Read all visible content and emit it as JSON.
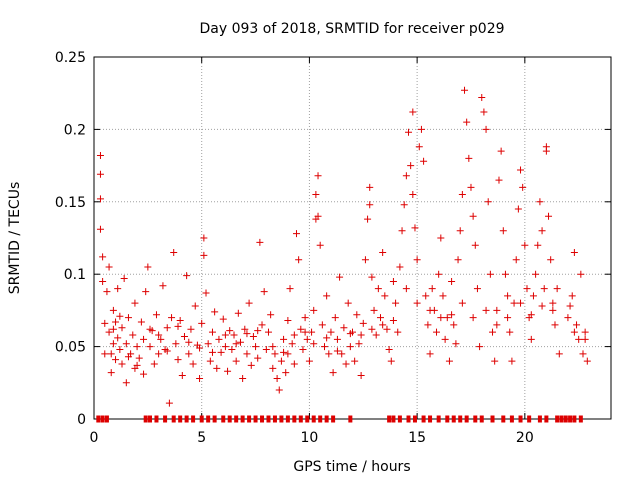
{
  "chart_data": {
    "type": "scatter",
    "title": "Day 093 of 2018, SRMTID for receiver p029",
    "xlabel": "GPS time / hours",
    "ylabel": "SRMTID / TECUs",
    "xlim": [
      0,
      24
    ],
    "ylim": [
      0,
      0.25
    ],
    "xticks": [
      0,
      5,
      10,
      15,
      20
    ],
    "yticks": [
      0,
      0.05,
      0.1,
      0.15,
      0.2,
      0.25
    ],
    "ytick_labels": [
      "0",
      "0.05",
      "0.1",
      "0.15",
      "0.2",
      "0.25"
    ],
    "grid": true,
    "marker": "+",
    "color": "#dd0000",
    "points": [
      [
        0.3,
        0.182
      ],
      [
        0.3,
        0.169
      ],
      [
        0.3,
        0.152
      ],
      [
        0.3,
        0.131
      ],
      [
        0.4,
        0.112
      ],
      [
        0.4,
        0.095
      ],
      [
        0.5,
        0.066
      ],
      [
        0.6,
        0.088
      ],
      [
        0.7,
        0.105
      ],
      [
        0.7,
        0.06
      ],
      [
        0.8,
        0.045
      ],
      [
        0.8,
        0.032
      ],
      [
        0.9,
        0.075
      ],
      [
        0.9,
        0.052
      ],
      [
        1.0,
        0.067
      ],
      [
        1.0,
        0.041
      ],
      [
        1.1,
        0.09
      ],
      [
        1.1,
        0.056
      ],
      [
        1.2,
        0.048
      ],
      [
        1.3,
        0.063
      ],
      [
        1.3,
        0.038
      ],
      [
        1.4,
        0.097
      ],
      [
        1.5,
        0.052
      ],
      [
        1.5,
        0.025
      ],
      [
        1.6,
        0.07
      ],
      [
        1.7,
        0.045
      ],
      [
        1.8,
        0.058
      ],
      [
        1.9,
        0.035
      ],
      [
        1.9,
        0.08
      ],
      [
        2.0,
        0.05
      ],
      [
        2.1,
        0.042
      ],
      [
        2.2,
        0.067
      ],
      [
        2.3,
        0.031
      ],
      [
        2.3,
        0.055
      ],
      [
        2.4,
        0.088
      ],
      [
        2.5,
        0.105
      ],
      [
        2.6,
        0.05
      ],
      [
        2.7,
        0.061
      ],
      [
        2.8,
        0.038
      ],
      [
        2.9,
        0.072
      ],
      [
        3.0,
        0.045
      ],
      [
        3.1,
        0.055
      ],
      [
        3.2,
        0.092
      ],
      [
        3.3,
        0.048
      ],
      [
        3.4,
        0.063
      ],
      [
        3.5,
        0.011
      ],
      [
        3.6,
        0.07
      ],
      [
        3.7,
        0.115
      ],
      [
        3.8,
        0.052
      ],
      [
        3.9,
        0.041
      ],
      [
        4.0,
        0.068
      ],
      [
        4.1,
        0.03
      ],
      [
        4.2,
        0.057
      ],
      [
        4.3,
        0.099
      ],
      [
        4.4,
        0.045
      ],
      [
        4.5,
        0.062
      ],
      [
        4.6,
        0.038
      ],
      [
        4.7,
        0.078
      ],
      [
        4.8,
        0.051
      ],
      [
        4.9,
        0.028
      ],
      [
        5.0,
        0.066
      ],
      [
        5.1,
        0.125
      ],
      [
        5.1,
        0.113
      ],
      [
        5.2,
        0.087
      ],
      [
        5.3,
        0.052
      ],
      [
        5.4,
        0.04
      ],
      [
        5.5,
        0.06
      ],
      [
        5.6,
        0.074
      ],
      [
        5.7,
        0.035
      ],
      [
        5.8,
        0.055
      ],
      [
        5.9,
        0.046
      ],
      [
        6.0,
        0.069
      ],
      [
        6.1,
        0.05
      ],
      [
        6.2,
        0.033
      ],
      [
        6.3,
        0.061
      ],
      [
        6.4,
        0.048
      ],
      [
        6.5,
        0.058
      ],
      [
        6.6,
        0.04
      ],
      [
        6.7,
        0.073
      ],
      [
        6.8,
        0.053
      ],
      [
        6.9,
        0.028
      ],
      [
        7.0,
        0.062
      ],
      [
        7.1,
        0.045
      ],
      [
        7.2,
        0.08
      ],
      [
        7.3,
        0.037
      ],
      [
        7.4,
        0.057
      ],
      [
        7.5,
        0.05
      ],
      [
        7.6,
        0.042
      ],
      [
        7.7,
        0.122
      ],
      [
        7.8,
        0.065
      ],
      [
        7.9,
        0.088
      ],
      [
        8.0,
        0.048
      ],
      [
        8.1,
        0.06
      ],
      [
        8.2,
        0.072
      ],
      [
        8.3,
        0.035
      ],
      [
        8.4,
        0.045
      ],
      [
        8.5,
        0.028
      ],
      [
        8.6,
        0.02
      ],
      [
        8.7,
        0.04
      ],
      [
        8.8,
        0.055
      ],
      [
        8.9,
        0.032
      ],
      [
        9.0,
        0.068
      ],
      [
        9.0,
        0.045
      ],
      [
        9.1,
        0.09
      ],
      [
        9.2,
        0.052
      ],
      [
        9.3,
        0.038
      ],
      [
        9.4,
        0.128
      ],
      [
        9.5,
        0.11
      ],
      [
        9.6,
        0.062
      ],
      [
        9.7,
        0.048
      ],
      [
        9.8,
        0.07
      ],
      [
        9.9,
        0.055
      ],
      [
        10.0,
        0.04
      ],
      [
        10.1,
        0.06
      ],
      [
        10.2,
        0.075
      ],
      [
        10.3,
        0.155
      ],
      [
        10.3,
        0.138
      ],
      [
        10.4,
        0.14
      ],
      [
        10.4,
        0.168
      ],
      [
        10.5,
        0.12
      ],
      [
        10.6,
        0.065
      ],
      [
        10.7,
        0.05
      ],
      [
        10.8,
        0.085
      ],
      [
        10.9,
        0.045
      ],
      [
        11.0,
        0.06
      ],
      [
        11.1,
        0.032
      ],
      [
        11.2,
        0.07
      ],
      [
        11.3,
        0.055
      ],
      [
        11.4,
        0.098
      ],
      [
        11.5,
        0.045
      ],
      [
        11.6,
        0.063
      ],
      [
        11.7,
        0.038
      ],
      [
        11.8,
        0.08
      ],
      [
        11.9,
        0.05
      ],
      [
        12.0,
        0.06
      ],
      [
        12.1,
        0.04
      ],
      [
        12.2,
        0.072
      ],
      [
        12.3,
        0.052
      ],
      [
        12.4,
        0.03
      ],
      [
        12.5,
        0.066
      ],
      [
        12.6,
        0.11
      ],
      [
        12.7,
        0.138
      ],
      [
        12.8,
        0.16
      ],
      [
        12.8,
        0.148
      ],
      [
        12.9,
        0.098
      ],
      [
        13.0,
        0.075
      ],
      [
        13.1,
        0.058
      ],
      [
        13.2,
        0.09
      ],
      [
        13.3,
        0.07
      ],
      [
        13.4,
        0.115
      ],
      [
        13.5,
        0.085
      ],
      [
        13.6,
        0.062
      ],
      [
        13.7,
        0.048
      ],
      [
        13.8,
        0.04
      ],
      [
        13.9,
        0.095
      ],
      [
        14.0,
        0.08
      ],
      [
        14.1,
        0.06
      ],
      [
        14.2,
        0.105
      ],
      [
        14.3,
        0.13
      ],
      [
        14.4,
        0.148
      ],
      [
        14.5,
        0.168
      ],
      [
        14.6,
        0.198
      ],
      [
        14.7,
        0.175
      ],
      [
        14.8,
        0.155
      ],
      [
        14.8,
        0.212
      ],
      [
        14.9,
        0.132
      ],
      [
        15.0,
        0.11
      ],
      [
        15.1,
        0.188
      ],
      [
        15.2,
        0.2
      ],
      [
        15.3,
        0.178
      ],
      [
        15.4,
        0.085
      ],
      [
        15.5,
        0.065
      ],
      [
        15.6,
        0.045
      ],
      [
        15.7,
        0.09
      ],
      [
        15.8,
        0.075
      ],
      [
        15.9,
        0.06
      ],
      [
        16.0,
        0.1
      ],
      [
        16.1,
        0.125
      ],
      [
        16.2,
        0.085
      ],
      [
        16.3,
        0.055
      ],
      [
        16.4,
        0.07
      ],
      [
        16.5,
        0.04
      ],
      [
        16.6,
        0.095
      ],
      [
        16.7,
        0.065
      ],
      [
        16.8,
        0.052
      ],
      [
        16.9,
        0.11
      ],
      [
        17.0,
        0.13
      ],
      [
        17.1,
        0.155
      ],
      [
        17.2,
        0.227
      ],
      [
        17.3,
        0.205
      ],
      [
        17.4,
        0.18
      ],
      [
        17.5,
        0.16
      ],
      [
        17.6,
        0.14
      ],
      [
        17.7,
        0.12
      ],
      [
        17.8,
        0.09
      ],
      [
        17.9,
        0.05
      ],
      [
        18.0,
        0.222
      ],
      [
        18.1,
        0.212
      ],
      [
        18.2,
        0.2
      ],
      [
        18.3,
        0.15
      ],
      [
        18.4,
        0.1
      ],
      [
        18.5,
        0.06
      ],
      [
        18.6,
        0.04
      ],
      [
        18.7,
        0.075
      ],
      [
        18.8,
        0.165
      ],
      [
        18.9,
        0.185
      ],
      [
        19.0,
        0.13
      ],
      [
        19.1,
        0.1
      ],
      [
        19.2,
        0.085
      ],
      [
        19.3,
        0.06
      ],
      [
        19.4,
        0.04
      ],
      [
        19.5,
        0.08
      ],
      [
        19.6,
        0.11
      ],
      [
        19.7,
        0.145
      ],
      [
        19.8,
        0.172
      ],
      [
        19.9,
        0.16
      ],
      [
        20.0,
        0.12
      ],
      [
        20.1,
        0.09
      ],
      [
        20.2,
        0.07
      ],
      [
        20.3,
        0.055
      ],
      [
        20.4,
        0.085
      ],
      [
        20.5,
        0.1
      ],
      [
        20.6,
        0.12
      ],
      [
        20.7,
        0.15
      ],
      [
        20.8,
        0.13
      ],
      [
        20.9,
        0.09
      ],
      [
        21.0,
        0.188
      ],
      [
        21.0,
        0.185
      ],
      [
        21.1,
        0.14
      ],
      [
        21.2,
        0.11
      ],
      [
        21.3,
        0.08
      ],
      [
        21.4,
        0.065
      ],
      [
        21.5,
        0.09
      ],
      [
        21.6,
        0.045
      ],
      [
        22.0,
        0.07
      ],
      [
        22.1,
        0.078
      ],
      [
        22.2,
        0.085
      ],
      [
        22.3,
        0.115
      ],
      [
        22.4,
        0.065
      ],
      [
        22.5,
        0.055
      ],
      [
        22.6,
        0.1
      ],
      [
        22.7,
        0.045
      ],
      [
        22.8,
        0.06
      ],
      [
        22.9,
        0.04
      ],
      [
        0.5,
        0.045
      ],
      [
        0.9,
        0.062
      ],
      [
        1.2,
        0.071
      ],
      [
        1.6,
        0.043
      ],
      [
        2.0,
        0.037
      ],
      [
        2.6,
        0.062
      ],
      [
        3.0,
        0.058
      ],
      [
        3.4,
        0.047
      ],
      [
        3.9,
        0.064
      ],
      [
        4.4,
        0.053
      ],
      [
        4.9,
        0.049
      ],
      [
        5.5,
        0.046
      ],
      [
        6.1,
        0.058
      ],
      [
        6.6,
        0.052
      ],
      [
        7.1,
        0.059
      ],
      [
        7.6,
        0.061
      ],
      [
        8.3,
        0.05
      ],
      [
        8.8,
        0.046
      ],
      [
        9.3,
        0.058
      ],
      [
        9.8,
        0.06
      ],
      [
        10.2,
        0.052
      ],
      [
        10.8,
        0.056
      ],
      [
        11.3,
        0.047
      ],
      [
        11.9,
        0.059
      ],
      [
        12.4,
        0.058
      ],
      [
        12.9,
        0.062
      ],
      [
        13.4,
        0.065
      ],
      [
        13.9,
        0.068
      ],
      [
        14.5,
        0.09
      ],
      [
        15.0,
        0.08
      ],
      [
        15.6,
        0.075
      ],
      [
        16.1,
        0.07
      ],
      [
        16.6,
        0.072
      ],
      [
        17.1,
        0.08
      ],
      [
        17.6,
        0.07
      ],
      [
        18.2,
        0.075
      ],
      [
        18.7,
        0.065
      ],
      [
        19.2,
        0.07
      ],
      [
        19.8,
        0.08
      ],
      [
        20.3,
        0.072
      ],
      [
        20.8,
        0.078
      ],
      [
        21.3,
        0.075
      ],
      [
        22.3,
        0.06
      ],
      [
        22.8,
        0.055
      ]
    ],
    "baseline_x": [
      0.2,
      0.4,
      0.6,
      2.4,
      2.6,
      2.9,
      3.3,
      3.7,
      4.0,
      4.3,
      4.6,
      5.0,
      5.3,
      5.6,
      6.0,
      6.3,
      6.6,
      6.9,
      7.2,
      7.5,
      7.8,
      8.1,
      8.4,
      8.7,
      9.0,
      9.3,
      9.6,
      9.9,
      10.2,
      10.5,
      10.8,
      11.1,
      11.9,
      13.7,
      13.9,
      14.2,
      14.6,
      14.9,
      15.3,
      15.6,
      16.0,
      16.4,
      16.7,
      17.0,
      17.3,
      17.7,
      18.0,
      18.5,
      19.0,
      19.4,
      19.8,
      20.2,
      20.7,
      21.0,
      21.5,
      21.7,
      21.9,
      22.1,
      22.3,
      22.6
    ]
  }
}
